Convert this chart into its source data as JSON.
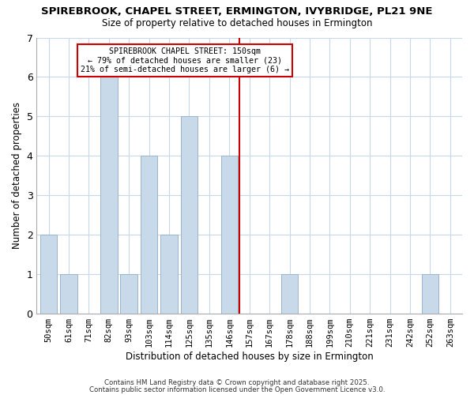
{
  "title": "SPIREBROOK, CHAPEL STREET, ERMINGTON, IVYBRIDGE, PL21 9NE",
  "subtitle": "Size of property relative to detached houses in Ermington",
  "xlabel": "Distribution of detached houses by size in Ermington",
  "ylabel": "Number of detached properties",
  "bin_labels": [
    "50sqm",
    "61sqm",
    "71sqm",
    "82sqm",
    "93sqm",
    "103sqm",
    "114sqm",
    "125sqm",
    "135sqm",
    "146sqm",
    "157sqm",
    "167sqm",
    "178sqm",
    "188sqm",
    "199sqm",
    "210sqm",
    "221sqm",
    "231sqm",
    "242sqm",
    "252sqm",
    "263sqm"
  ],
  "bin_values": [
    2,
    1,
    0,
    6,
    1,
    4,
    2,
    5,
    0,
    4,
    0,
    0,
    1,
    0,
    0,
    0,
    0,
    0,
    0,
    1,
    0
  ],
  "bar_color": "#c8d9ea",
  "bar_edge_color": "#9ab4cc",
  "grid_color": "#c8d8e8",
  "background_color": "#ffffff",
  "vline_color": "#cc0000",
  "vline_x": 9.5,
  "annotation_line1": "SPIREBROOK CHAPEL STREET: 150sqm",
  "annotation_line2": "← 79% of detached houses are smaller (23)",
  "annotation_line3": "21% of semi-detached houses are larger (6) →",
  "annotation_box_color": "white",
  "annotation_box_edge_color": "#cc0000",
  "ylim": [
    0,
    7
  ],
  "yticks": [
    0,
    1,
    2,
    3,
    4,
    5,
    6,
    7
  ],
  "footer1": "Contains HM Land Registry data © Crown copyright and database right 2025.",
  "footer2": "Contains public sector information licensed under the Open Government Licence v3.0."
}
